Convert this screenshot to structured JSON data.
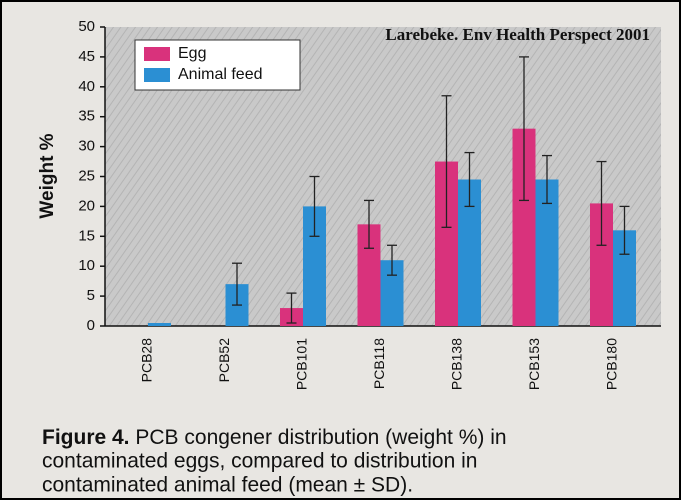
{
  "chart_data": {
    "type": "bar",
    "annotation": "Larebeke. Env Health Perspect 2001",
    "ylabel": "Weight %",
    "categories": [
      "PCB28",
      "PCB52",
      "PCB101",
      "PCB118",
      "PCB138",
      "PCB153",
      "PCB180"
    ],
    "series": [
      {
        "name": "Egg",
        "color": "#d9327c",
        "values": [
          null,
          null,
          3,
          17,
          27.5,
          33,
          20.5
        ],
        "errors": [
          null,
          null,
          2.5,
          4,
          11,
          12,
          7
        ]
      },
      {
        "name": "Animal feed",
        "color": "#2b8fd3",
        "values": [
          0.5,
          7,
          20,
          11,
          24.5,
          24.5,
          16
        ],
        "errors": [
          null,
          3.5,
          5,
          2.5,
          4.5,
          4,
          4
        ]
      }
    ],
    "ylim": [
      0,
      50
    ],
    "yticks": [
      0,
      5,
      10,
      15,
      20,
      25,
      30,
      35,
      40,
      45,
      50
    ],
    "legend": "upper left",
    "caption_label": "Figure 4.",
    "caption": [
      "PCB congener distribution (weight %) in",
      "contaminated eggs, compared to distribution in",
      "contaminated animal feed (mean ± SD)."
    ]
  }
}
